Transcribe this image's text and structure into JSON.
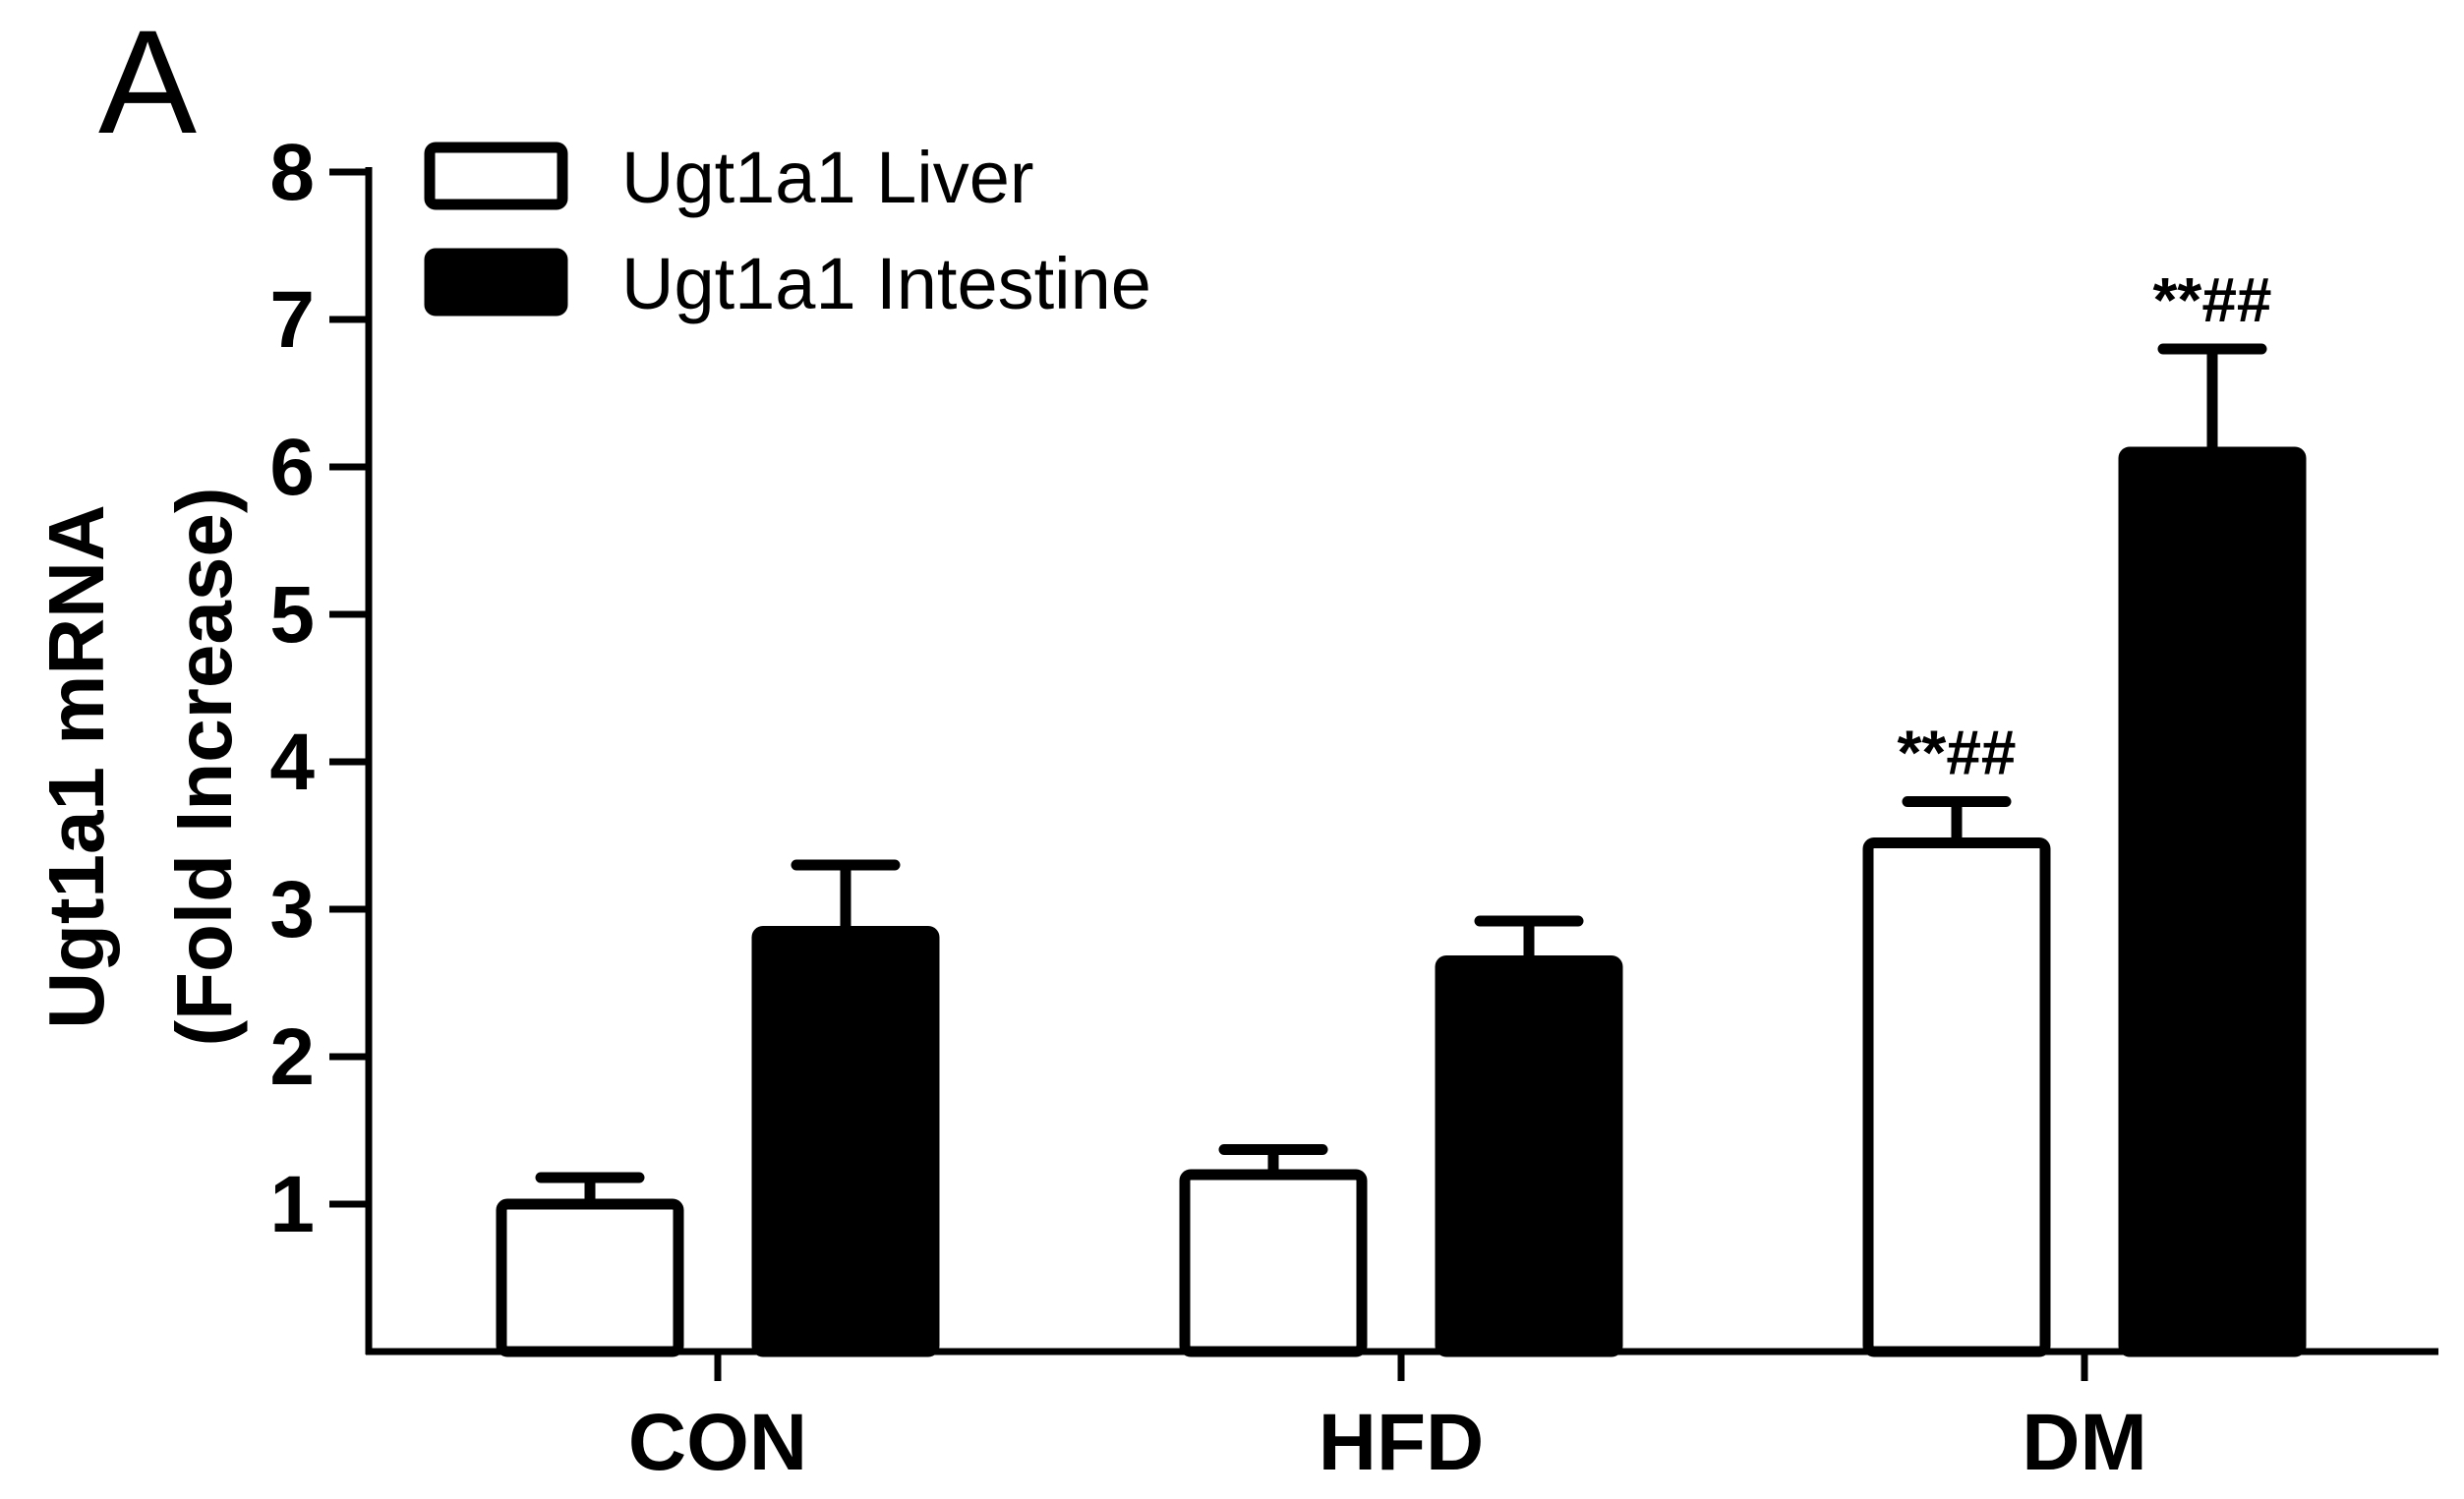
{
  "panel_label": "A",
  "chart_data": {
    "type": "bar",
    "title": "",
    "xlabel": "",
    "ylabel_lines": [
      "Ugt1a1 mRNA",
      "(Fold Increase)"
    ],
    "ylim": [
      0,
      8
    ],
    "yticks": [
      1,
      2,
      3,
      4,
      5,
      6,
      7,
      8
    ],
    "categories": [
      "CON",
      "HFD",
      "DM"
    ],
    "legend_position": "top-left",
    "series": [
      {
        "name": "Ugt1a1 Liver",
        "fill": "#ffffff",
        "stroke": "#000000",
        "values": [
          1.0,
          1.2,
          3.45
        ],
        "errors": [
          0.18,
          0.17,
          0.28
        ],
        "annotations": [
          "",
          "",
          "**##"
        ]
      },
      {
        "name": "Ugt1a1 Intestine",
        "fill": "#000000",
        "stroke": "#000000",
        "values": [
          2.85,
          2.65,
          6.1
        ],
        "errors": [
          0.45,
          0.27,
          0.7
        ],
        "annotations": [
          "",
          "",
          "**##"
        ]
      }
    ]
  }
}
